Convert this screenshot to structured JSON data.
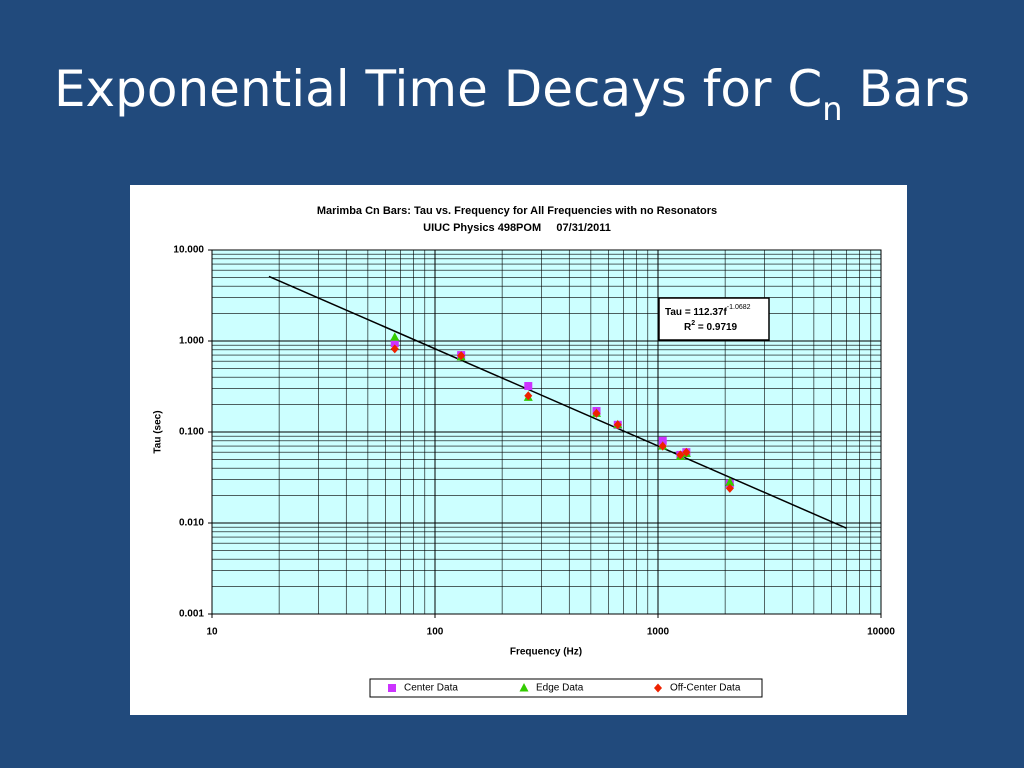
{
  "slide": {
    "title": "Exponential Time Decays for C",
    "title_sub": "n",
    "title_rest": "Bars"
  },
  "chart_data": {
    "type": "scatter",
    "title": "Marimba Cn Bars: Tau vs. Frequency for All Frequencies with no Resonators",
    "subtitle": "UIUC Physics 498POM     07/31/2011",
    "x_label": "Frequency (Hz)",
    "y_label": "Tau (sec)",
    "log_x": true,
    "log_y": true,
    "grid": true,
    "xlim": [
      10,
      10000
    ],
    "xticks": [
      10,
      100,
      1000,
      10000
    ],
    "ylim": [
      0.001,
      10
    ],
    "yticks": [
      {
        "value": 10,
        "label": "10.000"
      },
      {
        "value": 1,
        "label": "1.000"
      },
      {
        "value": 0.1,
        "label": "0.100"
      },
      {
        "value": 0.01,
        "label": "0.010"
      },
      {
        "value": 0.001,
        "label": "0.001"
      }
    ],
    "x": [
      66,
      131,
      262,
      530,
      660,
      1050,
      1260,
      1340,
      2100
    ],
    "series": [
      {
        "name": "Center Data",
        "color": "#cc33ff",
        "marker": "square",
        "values": [
          0.95,
          0.7,
          0.32,
          0.17,
          0.12,
          0.08,
          0.056,
          0.06,
          0.027
        ]
      },
      {
        "name": "Edge Data",
        "color": "#33cc00",
        "marker": "triangle",
        "values": [
          1.1,
          0.67,
          0.24,
          0.16,
          0.12,
          0.07,
          0.054,
          0.058,
          0.028
        ]
      },
      {
        "name": "Off-Center Data",
        "color": "#ee2200",
        "marker": "diamond",
        "values": [
          0.82,
          0.69,
          0.25,
          0.16,
          0.12,
          0.07,
          0.056,
          0.06,
          0.024
        ]
      }
    ],
    "trendline": {
      "x": [
        18,
        7000
      ],
      "values": [
        5.13,
        0.00877
      ],
      "color": "#000000"
    },
    "annotation": {
      "text": "Tau = 112.37f",
      "exponent": "-1.0682",
      "r_text": "R",
      "r_sup": "2",
      "r_value": " = 0.9719"
    }
  }
}
